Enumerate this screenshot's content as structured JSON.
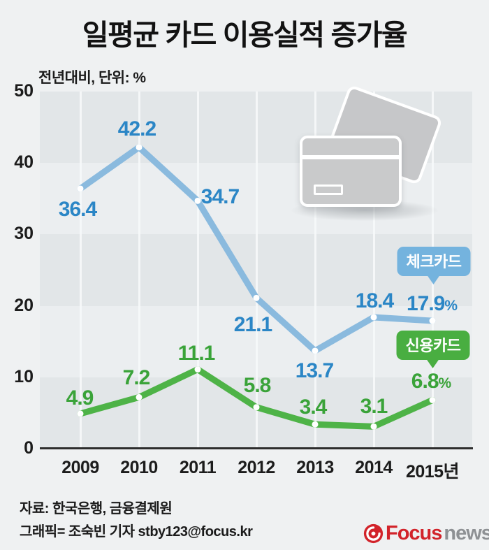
{
  "header": {
    "title": "일평균 카드 이용실적 증가율",
    "subtitle": "전년대비, 단위: %"
  },
  "chart_data": {
    "type": "line",
    "categories": [
      "2009",
      "2010",
      "2011",
      "2012",
      "2013",
      "2014",
      "2015년"
    ],
    "ylim": [
      0,
      50
    ],
    "yticks": [
      0,
      10,
      20,
      30,
      40,
      50
    ],
    "unit": "%",
    "grid": "alternating-horizontal-bands with white vertical gridlines",
    "legend_position": "callout-badges-right",
    "series": [
      {
        "name": "체크카드",
        "values": [
          36.4,
          42.2,
          34.7,
          21.1,
          13.7,
          18.4,
          17.9
        ],
        "last_value_suffix": "%",
        "line_color": "#8abade",
        "label_color": "#2b86c6",
        "badge_color": "#74b3de",
        "label_offsets": [
          [
            -4,
            30
          ],
          [
            -3,
            -26
          ],
          [
            32,
            -5
          ],
          [
            -5,
            39
          ],
          [
            -1,
            29
          ],
          [
            1,
            -23
          ],
          [
            -1,
            -24
          ]
        ]
      },
      {
        "name": "신용카드",
        "values": [
          4.9,
          7.2,
          11.1,
          5.8,
          3.4,
          3.1,
          6.8
        ],
        "last_value_suffix": "%",
        "line_color": "#4eb347",
        "label_color": "#3aa339",
        "badge_color": "#49ae41",
        "label_offsets": [
          [
            -1,
            -22
          ],
          [
            -4,
            -27
          ],
          [
            -2,
            -23
          ],
          [
            1,
            -31
          ],
          [
            -3,
            -24
          ],
          [
            0,
            -28
          ],
          [
            -2,
            -27
          ]
        ]
      }
    ]
  },
  "colors": {
    "page_background": "#eff1f2",
    "band_dark": "#e2e6e8",
    "band_light": "#ebeef0",
    "axis": "#2d2d2d",
    "logo_red": "#d2232a",
    "logo_gray": "#8e9194"
  },
  "footer": {
    "source": "자료: 한국은행, 금융결제원",
    "credit": "그래픽= 조숙빈 기자 stby123@focus.kr"
  },
  "logo": {
    "focus": "Focus",
    "news": "news"
  }
}
